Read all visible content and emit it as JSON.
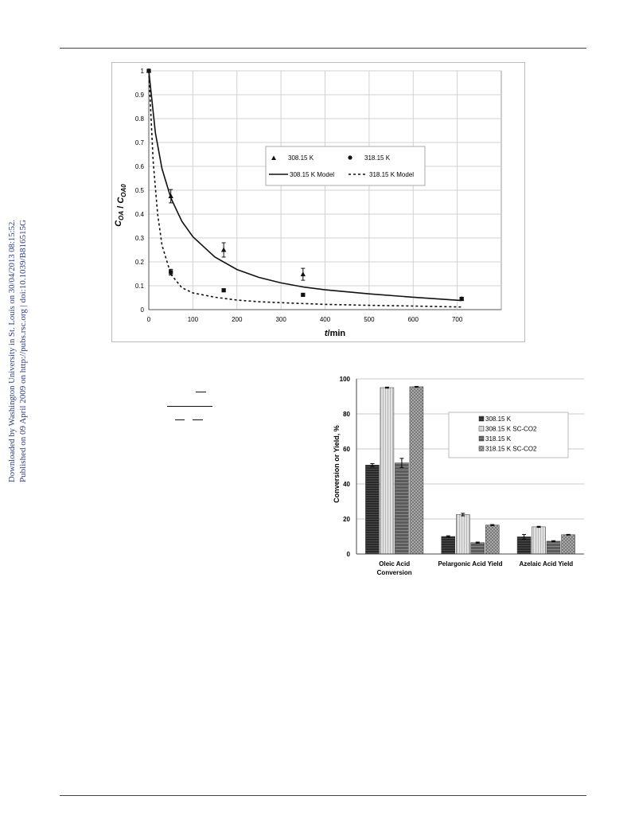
{
  "side_note": {
    "line1": "Downloaded by Washington University in St. Louis on 30/04/2013 08:15:52.",
    "line2": "Published on 09 April 2009 on http://pubs.rsc.org | doi:10.1039/B816515G"
  },
  "figure1": {
    "chart_data": {
      "type": "scatter",
      "xlabel": "t/min",
      "ylabel": "C_OA/C_OA0",
      "xlim": [
        0,
        800
      ],
      "ylim": [
        0,
        1
      ],
      "x_ticks": [
        "0",
        "100",
        "200",
        "300",
        "400",
        "500",
        "600",
        "700"
      ],
      "y_ticks": [
        "0",
        "0.1",
        "0.2",
        "0.3",
        "0.4",
        "0.5",
        "0.6",
        "0.7",
        "0.8",
        "0.9",
        "1"
      ],
      "grid": true,
      "legend_position": "center-right",
      "series": [
        {
          "name": "308.15 K",
          "kind": "points",
          "marker": "triangle",
          "x": [
            0,
            50,
            170,
            350,
            710
          ],
          "y": [
            1.0,
            0.475,
            0.25,
            0.148,
            0.045
          ],
          "err": [
            0.0,
            0.028,
            0.03,
            0.025,
            0.006
          ]
        },
        {
          "name": "318.15 K",
          "kind": "points",
          "marker": "square",
          "x": [
            0,
            50,
            170,
            350,
            710
          ],
          "y": [
            1.0,
            0.157,
            0.081,
            0.062,
            0.045
          ],
          "err": [
            0.0,
            0.012,
            0.005,
            0.004,
            0.004
          ]
        },
        {
          "name": "308.15 K Model",
          "kind": "line",
          "style": "solid",
          "x": [
            0,
            15,
            30,
            50,
            75,
            100,
            150,
            200,
            250,
            300,
            350,
            400,
            500,
            600,
            710
          ],
          "y": [
            1.0,
            0.74,
            0.59,
            0.468,
            0.37,
            0.305,
            0.22,
            0.168,
            0.135,
            0.112,
            0.095,
            0.083,
            0.066,
            0.052,
            0.038
          ]
        },
        {
          "name": "318.15 K Model",
          "kind": "line",
          "style": "dashed",
          "x": [
            0,
            10,
            20,
            30,
            50,
            75,
            100,
            150,
            200,
            250,
            300,
            400,
            500,
            600,
            710
          ],
          "y": [
            1.0,
            0.62,
            0.4,
            0.27,
            0.148,
            0.092,
            0.07,
            0.052,
            0.04,
            0.033,
            0.029,
            0.022,
            0.018,
            0.015,
            0.011
          ]
        }
      ]
    }
  },
  "figure2": {
    "chart_data": {
      "type": "bar",
      "ylabel": "Conversion or Yield, %",
      "ylim": [
        0,
        100
      ],
      "y_ticks": [
        "0",
        "20",
        "40",
        "60",
        "80",
        "100"
      ],
      "categories": [
        "Oleic Acid Conversion",
        "Pelargonic Acid Yield",
        "Azelaic Acid Yield"
      ],
      "category_lines": [
        [
          "Oleic Acid",
          "Conversion"
        ],
        [
          "Pelargonic Acid Yield"
        ],
        [
          "Azelaic Acid Yield"
        ]
      ],
      "legend_position": "top-right",
      "series": [
        {
          "name": "308.15 K",
          "fill": "#2e2e2e",
          "values": [
            50.8,
            10.0,
            9.8
          ],
          "err": [
            0.8,
            0.4,
            1.3
          ]
        },
        {
          "name": "308.15 K SC-CO2",
          "fill": "#d2d2d2",
          "values": [
            95.0,
            22.5,
            15.5
          ],
          "err": [
            0.3,
            0.7,
            0.3
          ]
        },
        {
          "name": "318.15 K",
          "fill": "#6c6c6c",
          "values": [
            52.0,
            6.5,
            7.3
          ],
          "err": [
            2.6,
            0.3,
            0.3
          ]
        },
        {
          "name": "318.15 K SC-CO2",
          "fill": "#9a9a9a",
          "values": [
            95.5,
            16.5,
            11.0
          ],
          "err": [
            0.2,
            0.3,
            0.2
          ]
        }
      ]
    }
  }
}
